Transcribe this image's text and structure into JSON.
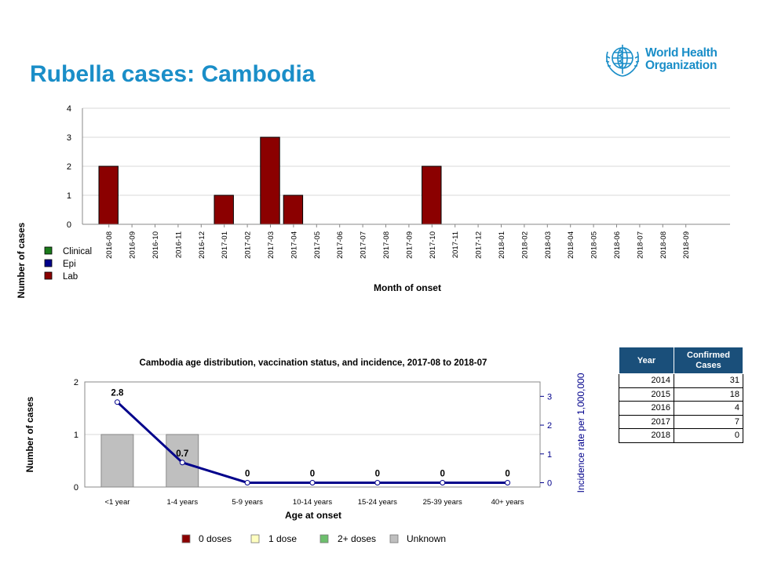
{
  "page": {
    "title": "Rubella cases: Cambodia",
    "logo_text_line1": "World Health",
    "logo_text_line2": "Organization",
    "accent_color": "#1a8ec8"
  },
  "chart_data": [
    {
      "type": "bar",
      "title": "",
      "xlabel": "Month of onset",
      "ylabel": "Number of cases",
      "ylim": [
        0,
        4
      ],
      "yticks": [
        0,
        1,
        2,
        3,
        4
      ],
      "grid": true,
      "categories": [
        "2016-08",
        "2016-09",
        "2016-10",
        "2016-11",
        "2016-12",
        "2017-01",
        "2017-02",
        "2017-03",
        "2017-04",
        "2017-05",
        "2017-06",
        "2017-07",
        "2017-08",
        "2017-09",
        "2017-10",
        "2017-11",
        "2017-12",
        "2018-01",
        "2018-02",
        "2018-03",
        "2018-04",
        "2018-05",
        "2018-06",
        "2018-07",
        "2018-08",
        "2018-09"
      ],
      "series": [
        {
          "name": "Clinical",
          "color": "#1a7a1a",
          "values": [
            0,
            0,
            0,
            0,
            0,
            0,
            0,
            0,
            0,
            0,
            0,
            0,
            0,
            0,
            0,
            0,
            0,
            0,
            0,
            0,
            0,
            0,
            0,
            0,
            0,
            0
          ]
        },
        {
          "name": "Epi",
          "color": "#00008b",
          "values": [
            0,
            0,
            0,
            0,
            0,
            0,
            0,
            0,
            0,
            0,
            0,
            0,
            0,
            0,
            0,
            0,
            0,
            0,
            0,
            0,
            0,
            0,
            0,
            0,
            0,
            0
          ]
        },
        {
          "name": "Lab",
          "color": "#8b0000",
          "values": [
            2,
            0,
            0,
            0,
            0,
            1,
            0,
            3,
            1,
            0,
            0,
            0,
            0,
            0,
            2,
            0,
            0,
            0,
            0,
            0,
            0,
            0,
            0,
            0,
            0,
            0
          ]
        }
      ],
      "legend_position": "bottom-left"
    },
    {
      "type": "bar",
      "title": "Cambodia age distribution, vaccination status, and incidence, 2017-08 to 2018-07",
      "xlabel": "Age at onset",
      "ylabel": "Number of cases",
      "y2label": "Incidence rate per 1,000,000",
      "ylim": [
        0,
        2
      ],
      "yticks": [
        0,
        1,
        2
      ],
      "y2lim": [
        -0.15,
        3.5
      ],
      "y2ticks": [
        0,
        1,
        2,
        3
      ],
      "grid": true,
      "categories": [
        "<1 year",
        "1-4 years",
        "5-9 years",
        "10-14 years",
        "15-24 years",
        "25-39 years",
        "40+ years"
      ],
      "series": [
        {
          "name": "0 doses",
          "color": "#8b0000",
          "values": [
            0,
            0,
            0,
            0,
            0,
            0,
            0
          ]
        },
        {
          "name": "1 dose",
          "color": "#ffffc0",
          "values": [
            0,
            0,
            0,
            0,
            0,
            0,
            0
          ]
        },
        {
          "name": "2+ doses",
          "color": "#6dbf6d",
          "values": [
            0,
            0,
            0,
            0,
            0,
            0,
            0
          ]
        },
        {
          "name": "Unknown",
          "color": "#bfbfbf",
          "values": [
            1,
            1,
            0,
            0,
            0,
            0,
            0
          ]
        }
      ],
      "incidence": {
        "color": "#00008b",
        "values": [
          2.8,
          0.7,
          0,
          0,
          0,
          0,
          0
        ],
        "labels": [
          "2.8",
          "0.7",
          "0",
          "0",
          "0",
          "0",
          "0"
        ]
      },
      "legend_position": "bottom"
    }
  ],
  "table": {
    "headers": [
      "Year",
      "Confirmed Cases"
    ],
    "rows": [
      {
        "year": "2014",
        "cases": "31"
      },
      {
        "year": "2015",
        "cases": "18"
      },
      {
        "year": "2016",
        "cases": "4"
      },
      {
        "year": "2017",
        "cases": "7"
      },
      {
        "year": "2018",
        "cases": "0"
      }
    ],
    "header_color": "#1a4f7a"
  }
}
